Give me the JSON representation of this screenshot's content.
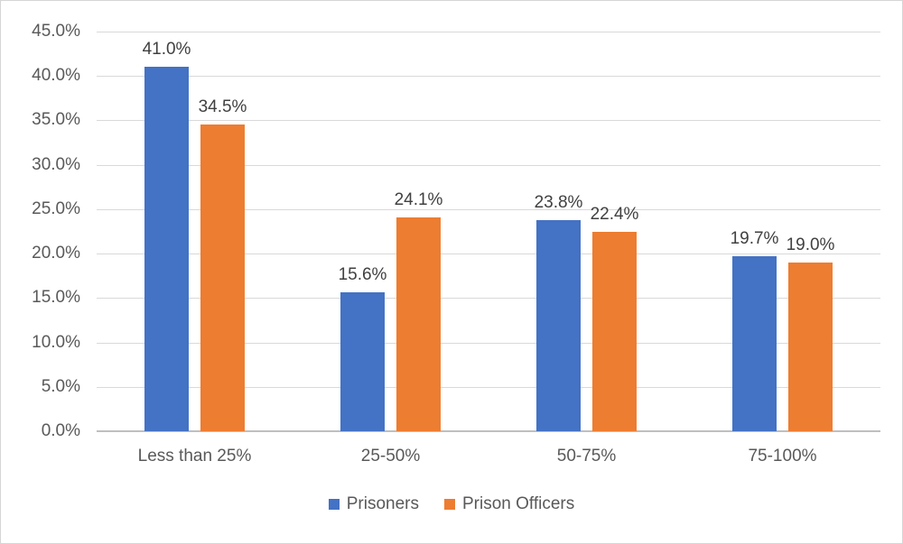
{
  "chart_data": {
    "type": "bar",
    "title": "",
    "categories": [
      "Less than 25%",
      "25-50%",
      "50-75%",
      "75-100%"
    ],
    "series": [
      {
        "name": "Prisoners",
        "color": "#4472C4",
        "values": [
          41.0,
          15.6,
          23.8,
          19.7
        ],
        "data_labels": [
          "41.0%",
          "15.6%",
          "23.8%",
          "19.7%"
        ]
      },
      {
        "name": "Prison Officers",
        "color": "#ED7D31",
        "values": [
          34.5,
          24.1,
          22.4,
          19.0
        ],
        "data_labels": [
          "34.5%",
          "24.1%",
          "22.4%",
          "19.0%"
        ]
      }
    ],
    "y_axis": {
      "min": 0,
      "max": 45,
      "step": 5,
      "tick_labels": [
        "0.0%",
        "5.0%",
        "10.0%",
        "15.0%",
        "20.0%",
        "25.0%",
        "30.0%",
        "35.0%",
        "40.0%",
        "45.0%"
      ]
    },
    "x_axis": {
      "tick_labels": [
        "Less than 25%",
        "25-50%",
        "50-75%",
        "75-100%"
      ]
    },
    "legend": {
      "position": "bottom",
      "entries": [
        {
          "label": "Prisoners",
          "color": "#4472C4"
        },
        {
          "label": "Prison Officers",
          "color": "#ED7D31"
        }
      ]
    },
    "grid": true
  },
  "styles": {
    "gridline_color": "#D9D9D9",
    "axis_line_color": "#BFBFBF",
    "tick_text_color": "#595959",
    "data_label_color": "#404040",
    "frame_border_color": "#D6D6D6",
    "background": "#FFFFFF"
  }
}
